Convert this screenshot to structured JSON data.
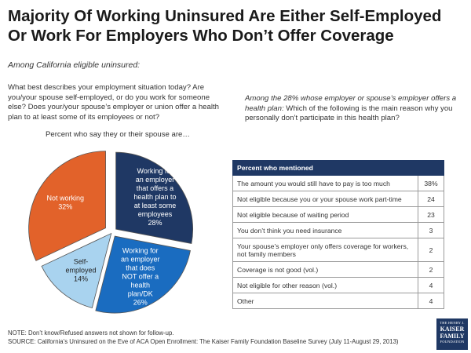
{
  "title_line1": "Majority Of Working Uninsured Are Either Self-Employed",
  "title_line2": "Or Work For Employers Who Don’t Offer Coverage",
  "subtitle": "Among California eligible uninsured:",
  "question_left": "What best describes your employment situation today? Are you/your spouse self-employed, or do you work for someone else? Does your/your spouse’s employer or union offer a health plan to at least some of its employees or not?",
  "question_right_italic": "Among the 28% whose employer or spouse’s employer offers a health plan:",
  "question_right_rest": " Which of the following is the main reason why you personally don’t participate in this health plan?",
  "pie_caption": "Percent who say they or their spouse are…",
  "chart_data": [
    {
      "type": "pie",
      "title": "Percent who say they or their spouse are…",
      "slices": [
        {
          "label": [
            "Working for",
            "an employer",
            "that offers a",
            "health plan to",
            "at least some",
            "employees"
          ],
          "value": 28,
          "display": "28%",
          "color": "#1f3864"
        },
        {
          "label": [
            "Working for",
            "an employer",
            "that does",
            "NOT offer a",
            "health",
            "plan/DK"
          ],
          "value": 26,
          "display": "26%",
          "color": "#1a6cc0"
        },
        {
          "label": [
            "Self-",
            "employed"
          ],
          "value": 14,
          "display": "14%",
          "color": "#a9d3ef"
        },
        {
          "label": [
            "Not working"
          ],
          "value": 32,
          "display": "32%",
          "color": "#e2622a"
        }
      ]
    },
    {
      "type": "table",
      "header": [
        "Percent who mentioned",
        ""
      ],
      "rows": [
        {
          "reason": "The amount you would still have to pay is too much",
          "value": "38%"
        },
        {
          "reason": "Not eligible because you or your spouse work part-time",
          "value": "24"
        },
        {
          "reason": "Not eligible because of waiting period",
          "value": "23"
        },
        {
          "reason": "You don’t think you need insurance",
          "value": "3"
        },
        {
          "reason": "Your spouse’s employer only offers coverage for workers, not family members",
          "value": "2"
        },
        {
          "reason": "Coverage is not good (vol.)",
          "value": "2"
        },
        {
          "reason": "Not eligible for other reason (vol.)",
          "value": "4"
        },
        {
          "reason": "Other",
          "value": "4"
        }
      ]
    }
  ],
  "note": "NOTE: Don’t know/Refused answers not shown for follow-up.",
  "source": "SOURCE: California’s Uninsured on the Eve of ACA Open Enrollment: The Kaiser Family Foundation Baseline Survey (July 11-August 29, 2013)",
  "logo": {
    "top": "THE HENRY J.",
    "line1": "KAISER",
    "line2": "FAMILY",
    "bottom": "FOUNDATION"
  }
}
